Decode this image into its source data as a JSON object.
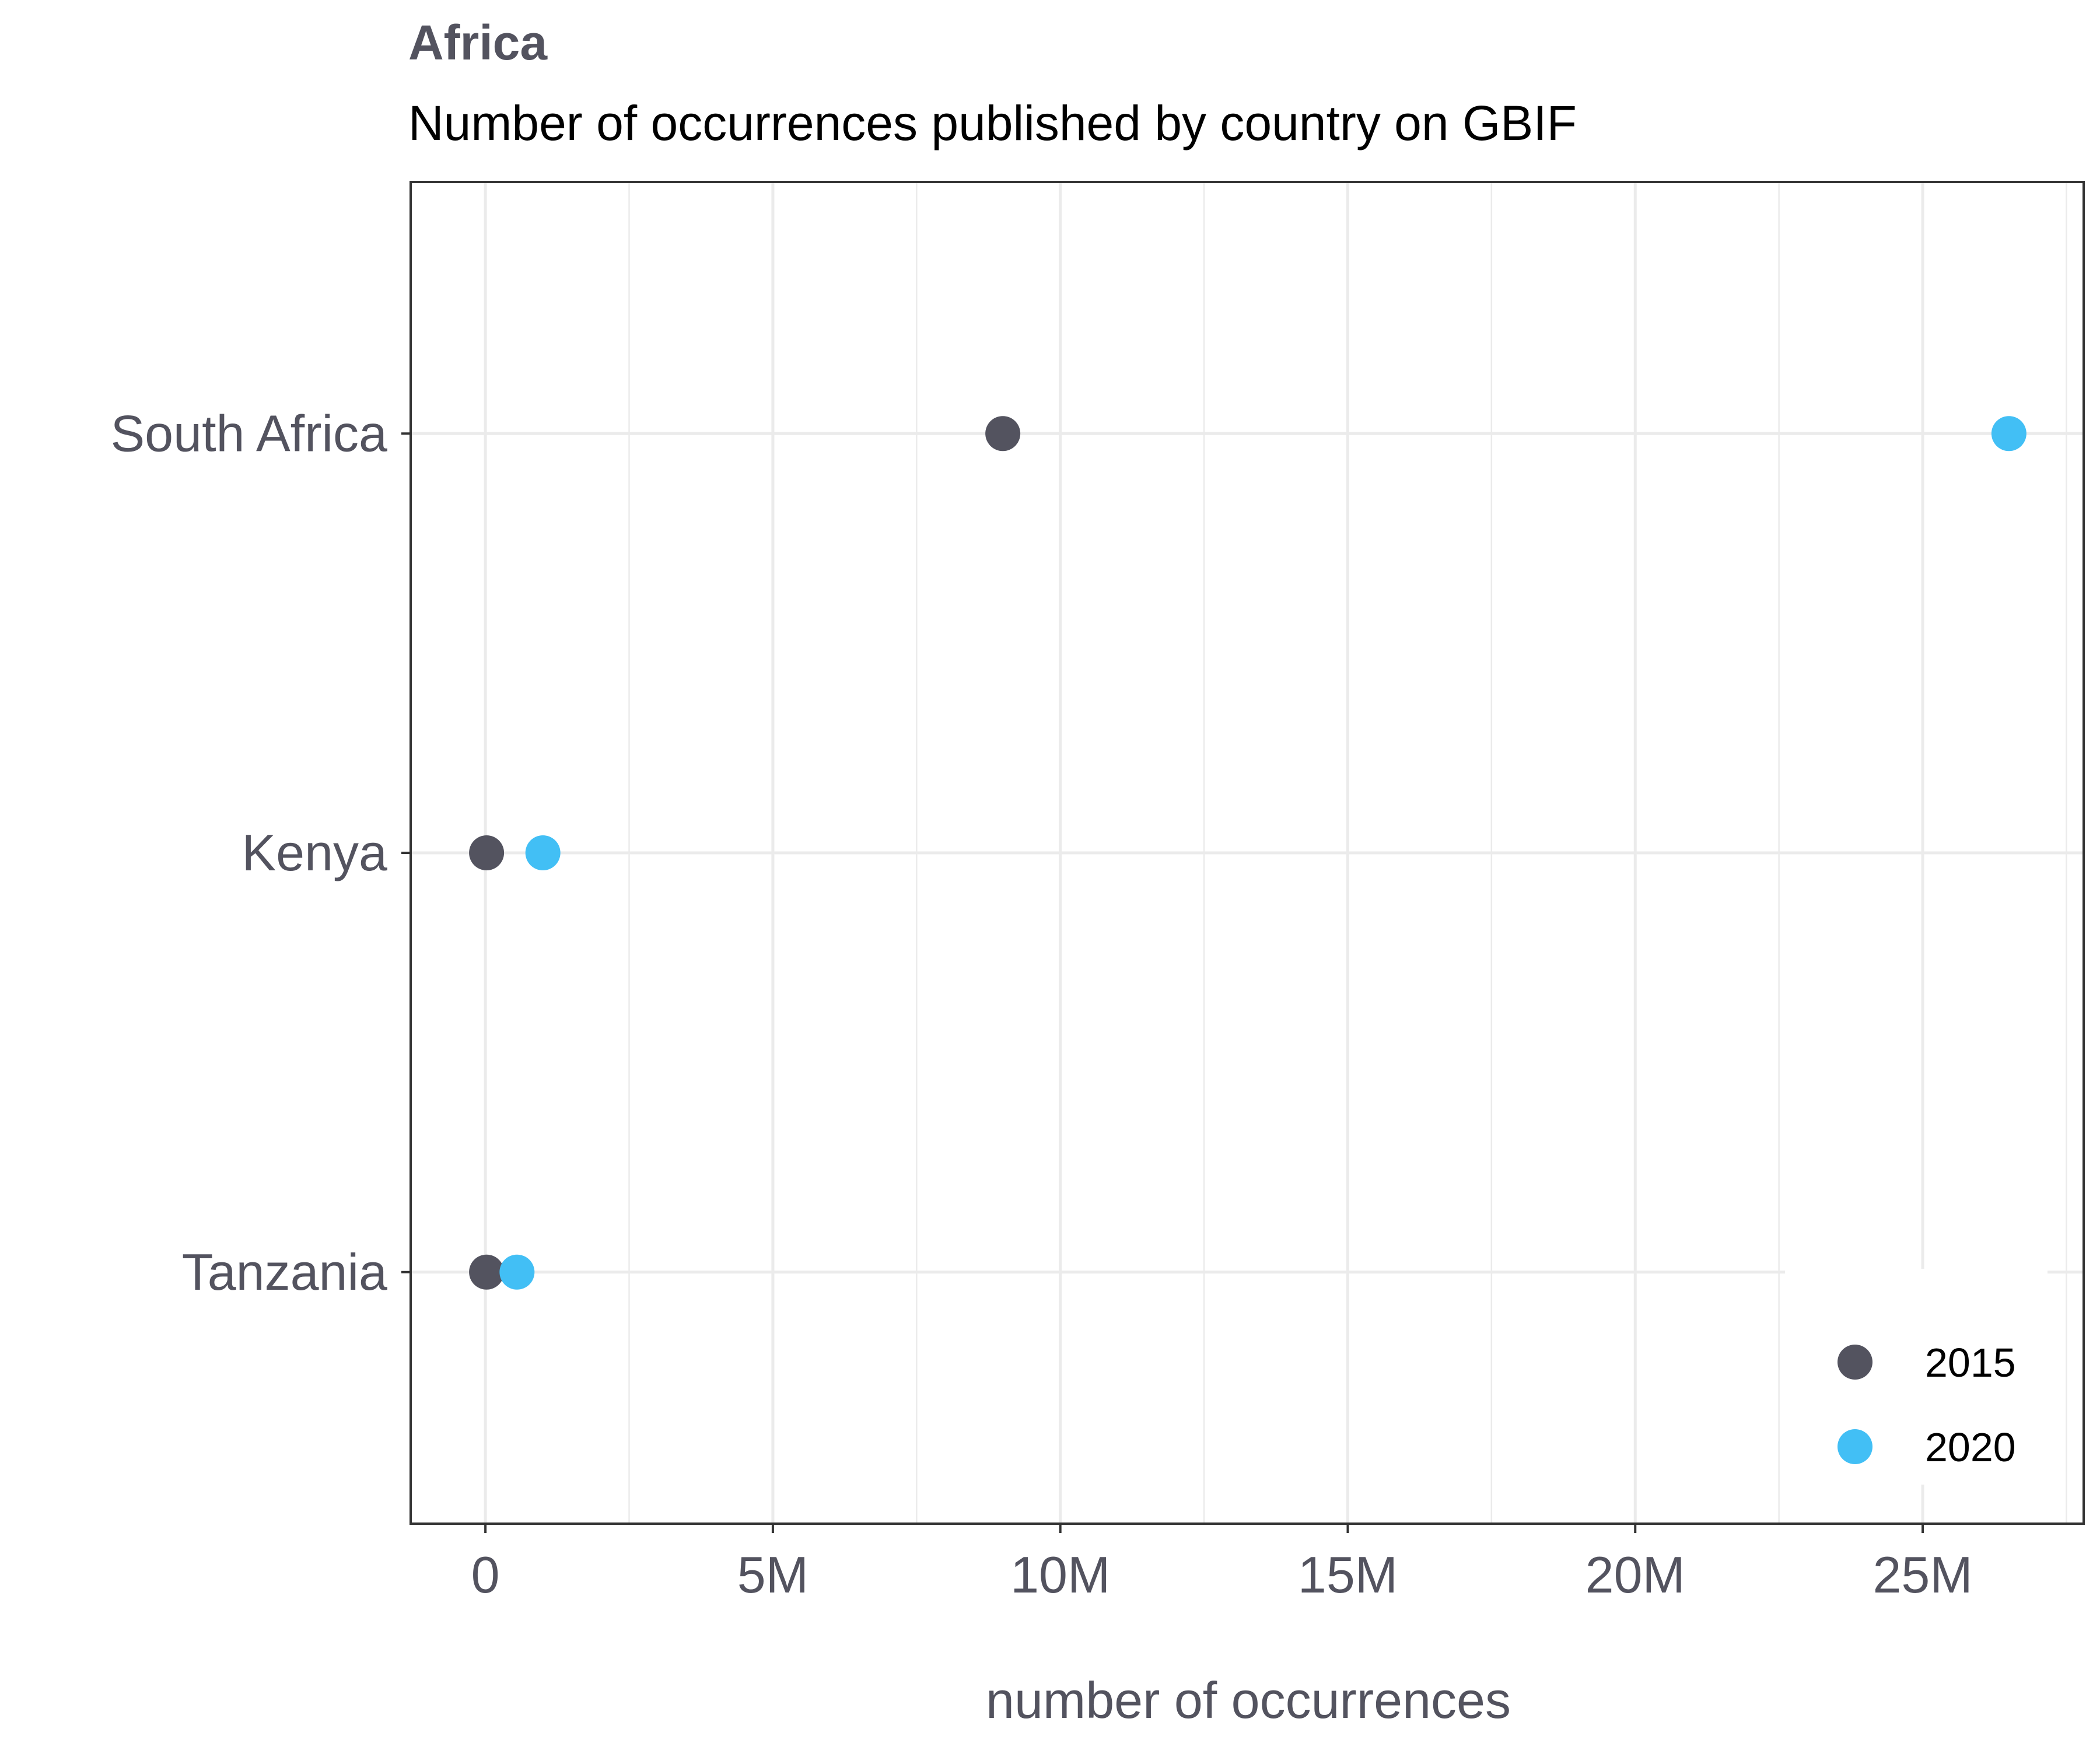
{
  "chart_data": {
    "type": "scatter",
    "title": "Africa",
    "subtitle": "Number of occurrences published by country on GBIF",
    "xlabel": "number of occurrences",
    "ylabel": "",
    "categories": [
      "South Africa",
      "Kenya",
      "Tanzania"
    ],
    "xlim": [
      -1300000,
      27800000
    ],
    "x_ticks": [
      0,
      5000000,
      10000000,
      15000000,
      20000000,
      25000000
    ],
    "x_tick_labels": [
      "0",
      "5M",
      "10M",
      "15M",
      "20M",
      "25M"
    ],
    "grid": true,
    "legend_position": "bottom-right",
    "series": [
      {
        "name": "2015",
        "color": "#53535f",
        "values": [
          9000000,
          20000,
          20000
        ]
      },
      {
        "name": "2020",
        "color": "#42bff5",
        "values": [
          26500000,
          1000000,
          550000
        ]
      }
    ]
  },
  "colors": {
    "text": "#53535f",
    "subtitle": "#000000",
    "grid": "#ebebeb",
    "frame": "#333333"
  }
}
